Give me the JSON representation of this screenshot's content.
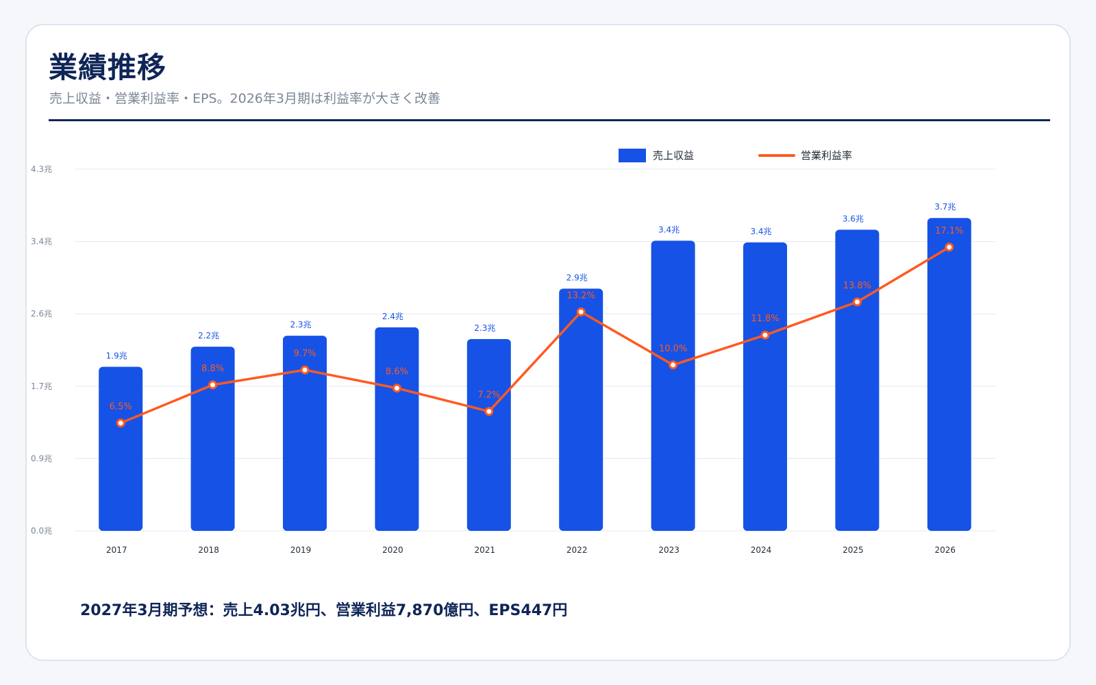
{
  "header": {
    "title": "業績推移",
    "subtitle": "売上収益・営業利益率・EPS。2026年3月期は利益率が大きく改善"
  },
  "footer": {
    "note": "2027年3月期予想：売上4.03兆円、営業利益7,870億円、EPS447円"
  },
  "colors": {
    "bar": "#1652e6",
    "line": "#ff5a1f",
    "title": "#0f2557",
    "grid": "#e3e8f0",
    "axis_text": "#7b8696"
  },
  "chart_data": {
    "type": "bar",
    "categories": [
      "2017",
      "2018",
      "2019",
      "2020",
      "2021",
      "2022",
      "2023",
      "2024",
      "2025",
      "2026"
    ],
    "series": [
      {
        "name": "売上収益",
        "type": "bar",
        "values": [
          1.95,
          2.19,
          2.32,
          2.42,
          2.28,
          2.88,
          3.45,
          3.43,
          3.58,
          3.72
        ],
        "labels": [
          "1.9兆",
          "2.2兆",
          "2.3兆",
          "2.4兆",
          "2.3兆",
          "2.9兆",
          "3.4兆",
          "3.4兆",
          "3.6兆",
          "3.7兆"
        ]
      },
      {
        "name": "営業利益率",
        "type": "line",
        "values": [
          6.5,
          8.8,
          9.7,
          8.6,
          7.2,
          13.2,
          10.0,
          11.8,
          13.8,
          17.1
        ],
        "labels": [
          "6.5%",
          "8.8%",
          "9.7%",
          "8.6%",
          "7.2%",
          "13.2%",
          "10.0%",
          "11.8%",
          "13.8%",
          "17.1%"
        ]
      }
    ],
    "ylim": [
      0,
      4.3
    ],
    "y_ticks": [
      "0.0兆",
      "0.9兆",
      "1.7兆",
      "2.6兆",
      "3.4兆",
      "4.3兆"
    ],
    "y2lim": [
      0,
      21.8
    ],
    "grid": true,
    "legend": "top-center"
  }
}
